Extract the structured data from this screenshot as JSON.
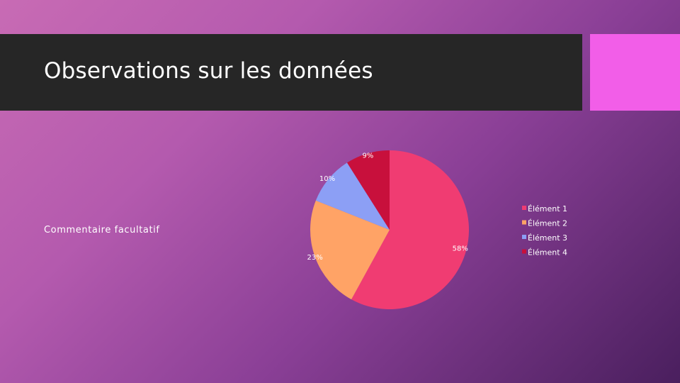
{
  "slide": {
    "title": "Observations sur les données",
    "comment": "Commentaire facultatif",
    "accent_color": "#f25ee8",
    "title_bar_color": "#262626"
  },
  "chart_data": {
    "type": "pie",
    "title": "",
    "categories": [
      "Élément 1",
      "Élément 2",
      "Élément 3",
      "Élément 4"
    ],
    "values": [
      58,
      23,
      10,
      9
    ],
    "labels": [
      "58%",
      "23%",
      "10%",
      "9%"
    ],
    "colors": [
      "#f03c72",
      "#ffa366",
      "#8c9ff5",
      "#c8103c"
    ],
    "start_angle_deg": 0,
    "direction": "clockwise",
    "legend_position": "right"
  }
}
